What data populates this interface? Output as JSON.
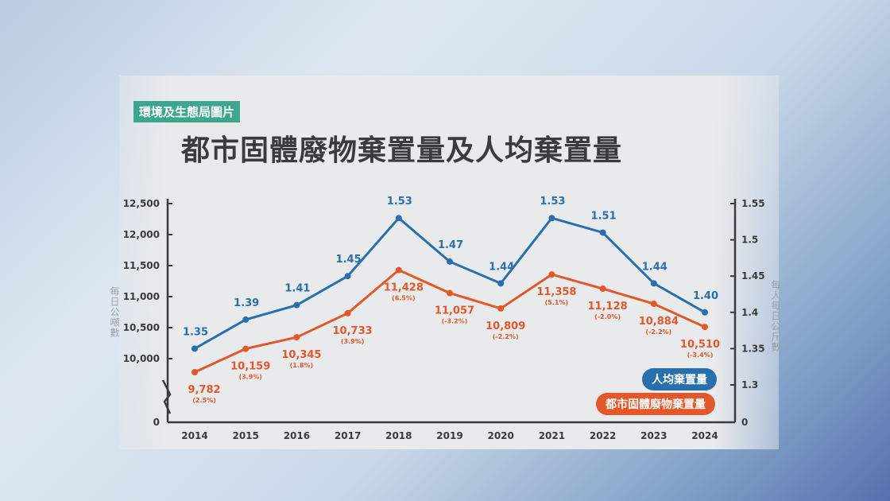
{
  "header": {
    "source_tag": "環境及生態局圖片",
    "title": "都市固體廢物棄置量及人均棄置量"
  },
  "chart_data": {
    "type": "line",
    "title": "都市固體廢物棄置量及人均棄置量",
    "categories": [
      "2014",
      "2015",
      "2016",
      "2017",
      "2018",
      "2019",
      "2020",
      "2021",
      "2022",
      "2023",
      "2024"
    ],
    "left_axis": {
      "label": "每日公噸數",
      "ticks": [
        "12,500",
        "12,000",
        "11,500",
        "11,000",
        "10,500",
        "10,000",
        "0"
      ],
      "range": [
        10000,
        12500
      ],
      "broken": true
    },
    "right_axis": {
      "label": "每人每日公斤數",
      "ticks": [
        "1.55",
        "1.5",
        "1.45",
        "1.4",
        "1.35",
        "1.3",
        "0"
      ],
      "range": [
        1.3,
        1.55
      ],
      "broken": true
    },
    "series": [
      {
        "name": "人均棄置量",
        "axis": "right",
        "color": "#2a6fad",
        "values": [
          1.35,
          1.39,
          1.41,
          1.45,
          1.53,
          1.47,
          1.44,
          1.53,
          1.51,
          1.44,
          1.4
        ],
        "labels": [
          "1.35",
          "1.39",
          "1.41",
          "1.45",
          "1.53",
          "1.47",
          "1.44",
          "1.53",
          "1.51",
          "1.44",
          "1.40"
        ]
      },
      {
        "name": "都市固體廢物棄置量",
        "axis": "left",
        "color": "#e2582b",
        "values": [
          9782,
          10159,
          10345,
          10733,
          11428,
          11057,
          10809,
          11358,
          11128,
          10884,
          10510
        ],
        "labels": [
          "9,782",
          "10,159",
          "10,345",
          "10,733",
          "11,428",
          "11,057",
          "10,809",
          "11,358",
          "11,128",
          "10,884",
          "10,510"
        ],
        "changes": [
          "(2.5%)",
          "(3.9%)",
          "(1.8%)",
          "(3.9%)",
          "(6.5%)",
          "(-3.2%)",
          "(-2.2%)",
          "(5.1%)",
          "(-2.0%)",
          "(-2.2%)",
          "(-3.4%)"
        ]
      }
    ],
    "legend": "bottom-right"
  }
}
